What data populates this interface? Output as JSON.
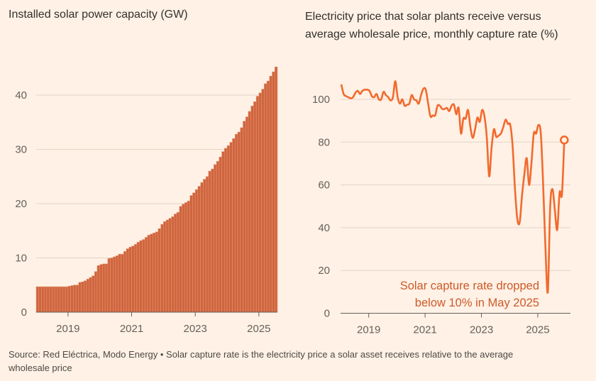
{
  "colors": {
    "background": "#fff1e5",
    "bar": "#cf653e",
    "bar_edge": "#e89a78",
    "line": "#f26a2e",
    "annotation": "#cc5a2a"
  },
  "footer": {
    "line1": "Source: Red Eléctrica, Modo Energy • Solar capture rate is the electricity price a solar asset receives relative to the average",
    "line2": "wholesale price"
  },
  "chart_data": [
    {
      "type": "bar",
      "title": "Installed solar power capacity (GW)",
      "xlabel": "",
      "ylabel": "GW",
      "x_start": "2018-01",
      "frequency": "monthly",
      "xticks": [
        "2019",
        "2021",
        "2023",
        "2025"
      ],
      "yticks": [
        "0",
        "10",
        "20",
        "30",
        "40"
      ],
      "ylim": [
        0,
        46
      ],
      "grid": true,
      "values": [
        4.7,
        4.7,
        4.7,
        4.7,
        4.7,
        4.7,
        4.7,
        4.7,
        4.7,
        4.7,
        4.7,
        4.7,
        4.8,
        4.9,
        5.0,
        5.0,
        5.5,
        5.6,
        5.8,
        6.1,
        6.4,
        6.7,
        7.5,
        8.6,
        8.8,
        8.9,
        8.9,
        9.9,
        10.0,
        10.2,
        10.4,
        10.7,
        10.7,
        11.2,
        11.7,
        12.0,
        12.2,
        12.5,
        12.9,
        13.2,
        13.4,
        13.8,
        14.2,
        14.4,
        14.6,
        14.8,
        15.4,
        16.2,
        16.7,
        17.0,
        17.3,
        17.6,
        18.1,
        18.4,
        19.5,
        19.9,
        20.2,
        20.5,
        21.5,
        22.0,
        22.6,
        23.2,
        23.9,
        24.5,
        25.0,
        26.0,
        26.4,
        27.2,
        27.8,
        28.6,
        29.6,
        30.2,
        30.7,
        31.3,
        32.0,
        32.8,
        33.2,
        34.0,
        35.2,
        36.0,
        37.0,
        38.0,
        38.8,
        39.8,
        40.4,
        41.1,
        42.1,
        42.6,
        43.5,
        44.3,
        45.2
      ]
    },
    {
      "type": "line",
      "title_line1": "Electricity price that solar plants receive versus",
      "title_line2": "average wholesale price, monthly capture rate (%)",
      "xlabel": "",
      "ylabel": "%",
      "x_start": "2018-01",
      "frequency": "monthly",
      "xticks": [
        "2019",
        "2021",
        "2023",
        "2025"
      ],
      "yticks": [
        "0",
        "20",
        "40",
        "60",
        "80",
        "100"
      ],
      "ylim": [
        0,
        110
      ],
      "grid": true,
      "annotation_line1": "Solar capture rate dropped",
      "annotation_line2": "below 10% in May 2025",
      "values": [
        107,
        102.5,
        101.5,
        101,
        100.5,
        101,
        103,
        104,
        102.5,
        104,
        104.5,
        104.5,
        104,
        101.5,
        101,
        102.5,
        100,
        100,
        103.5,
        102,
        101,
        99.5,
        101,
        108.5,
        101,
        98,
        100,
        97,
        97.5,
        98,
        102,
        100,
        99.5,
        98,
        102,
        105,
        104.5,
        98,
        92,
        92.5,
        92.5,
        97,
        97,
        95.5,
        95.5,
        96,
        94.5,
        97,
        97.5,
        93,
        96,
        84,
        91,
        91,
        95,
        87,
        82,
        86,
        91.5,
        89.5,
        95,
        92,
        82,
        64,
        77,
        86,
        82.5,
        83,
        84,
        87,
        90.5,
        88.5,
        88,
        78,
        58,
        44,
        42.5,
        55,
        65,
        72.5,
        60,
        70,
        84,
        84,
        88,
        84,
        60,
        30,
        10,
        50,
        58,
        48,
        39,
        56.5,
        55.5,
        81
      ]
    }
  ]
}
